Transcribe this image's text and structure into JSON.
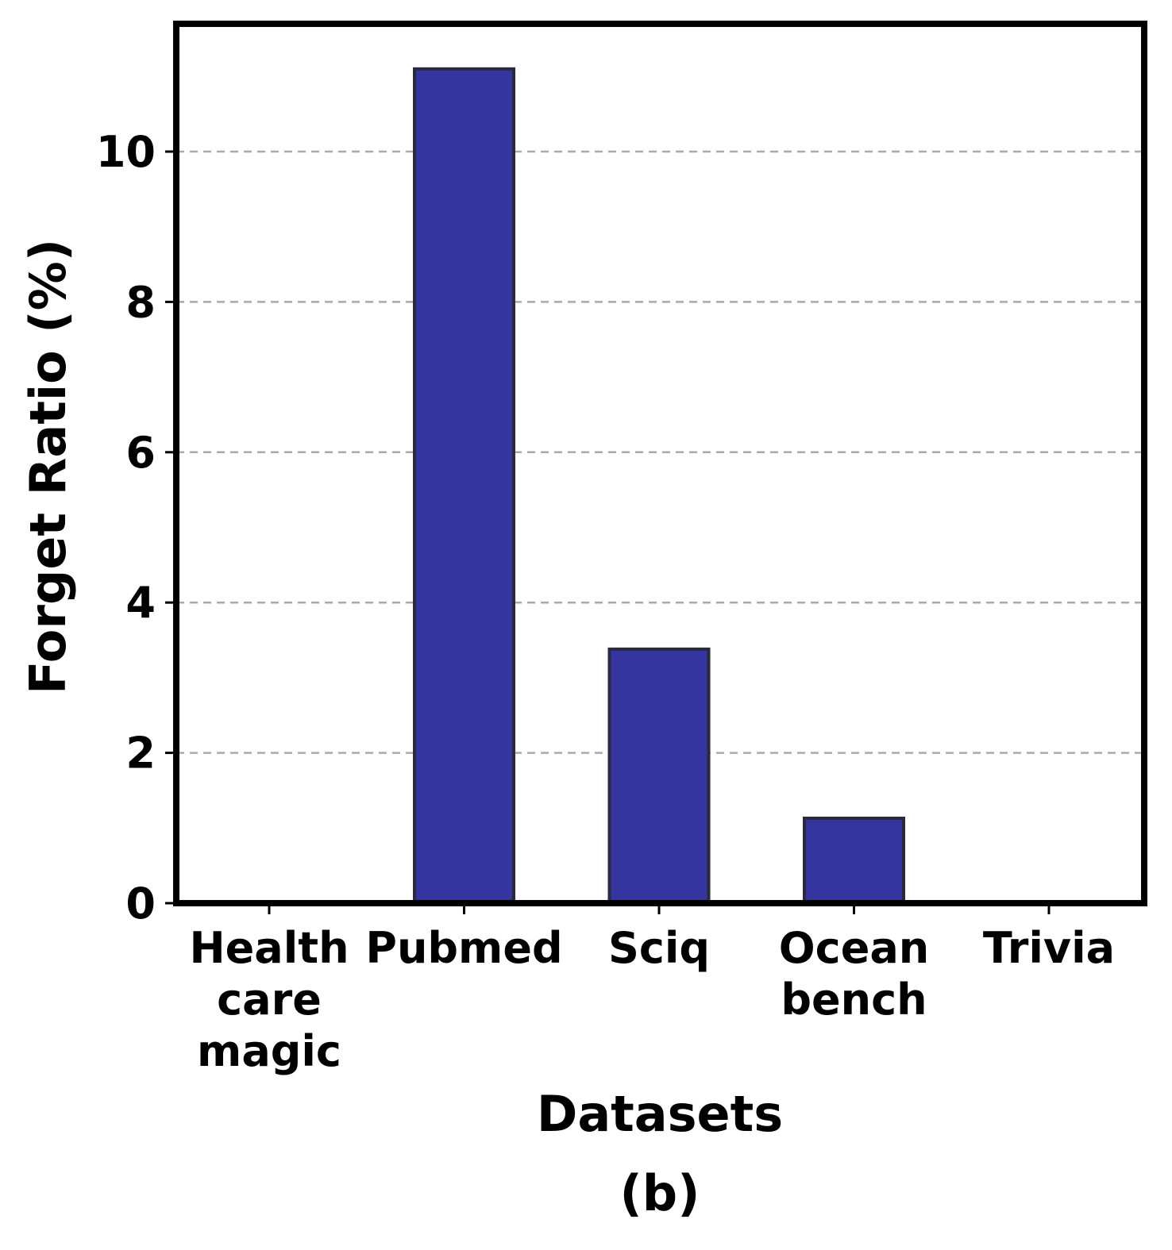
{
  "chart_data": {
    "type": "bar",
    "categories": [
      [
        "Health",
        "care",
        "magic"
      ],
      [
        "Pubmed"
      ],
      [
        "Sciq"
      ],
      [
        "Ocean",
        "bench"
      ],
      [
        "Trivia"
      ]
    ],
    "values": [
      0,
      11.1,
      3.38,
      1.13,
      0
    ],
    "xlabel": "Datasets",
    "ylabel": "Forget Ratio (%)",
    "caption": "(b)",
    "ylim": [
      0,
      11.7
    ],
    "yticks": [
      0,
      2,
      4,
      6,
      8,
      10
    ],
    "grid": "horizontal dashed",
    "bar_color": "#3535a0",
    "bar_edge_color": "#2a2a3a",
    "grid_color": "#aaaaaa"
  }
}
